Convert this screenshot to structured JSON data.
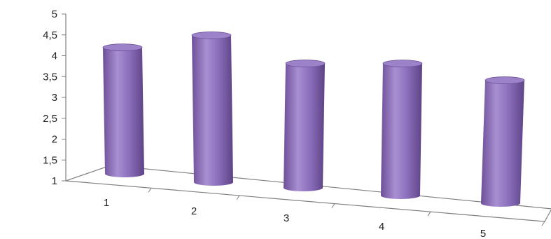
{
  "chart_data": {
    "type": "bar",
    "style": "3d-cylinder",
    "title": "",
    "xlabel": "",
    "ylabel": "",
    "categories": [
      "1",
      "2",
      "3",
      "4",
      "5"
    ],
    "series": [
      {
        "values": [
          4.3,
          4.7,
          4.1,
          4.2,
          3.9
        ]
      }
    ],
    "ylim": [
      1,
      5
    ],
    "yticks": [
      "1",
      "1,5",
      "2",
      "2,5",
      "3",
      "3,5",
      "4",
      "4,5",
      "5"
    ],
    "grid": false,
    "legend": "none",
    "colors": {
      "bar": "#8064a2",
      "axis": "#7f7f7f",
      "text": "#222222"
    }
  }
}
